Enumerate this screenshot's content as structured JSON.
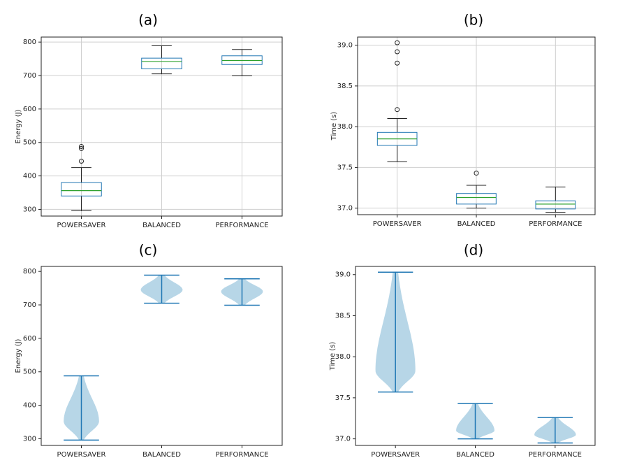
{
  "chart_data": [
    {
      "panel_label": "(a)",
      "type": "box",
      "categories": [
        "POWERSAVER",
        "BALANCED",
        "PERFORMANCE"
      ],
      "ylabel": "Energy (J)",
      "ylim": [
        280,
        815
      ],
      "yticks": [
        300,
        400,
        500,
        600,
        700,
        800
      ],
      "grid": true,
      "series": [
        {
          "name": "POWERSAVER",
          "whisker_low": 296,
          "q1": 340,
          "median": 356,
          "q3": 380,
          "whisker_high": 425,
          "outliers": [
            444,
            482,
            488
          ]
        },
        {
          "name": "BALANCED",
          "whisker_low": 705,
          "q1": 720,
          "median": 742,
          "q3": 752,
          "whisker_high": 789,
          "outliers": []
        },
        {
          "name": "PERFORMANCE",
          "whisker_low": 699,
          "q1": 733,
          "median": 745,
          "q3": 759,
          "whisker_high": 778,
          "outliers": []
        }
      ]
    },
    {
      "panel_label": "(b)",
      "type": "box",
      "categories": [
        "POWERSAVER",
        "BALANCED",
        "PERFORMANCE"
      ],
      "ylabel": "Time (s)",
      "ylim": [
        36.92,
        39.1
      ],
      "yticks": [
        37.0,
        37.5,
        38.0,
        38.5,
        39.0
      ],
      "tick_labels": [
        "37.0",
        "37.5",
        "38.0",
        "38.5",
        "39.0"
      ],
      "grid": true,
      "series": [
        {
          "name": "POWERSAVER",
          "whisker_low": 37.57,
          "q1": 37.77,
          "median": 37.85,
          "q3": 37.93,
          "whisker_high": 38.1,
          "outliers": [
            38.21,
            38.78,
            38.92,
            39.03
          ]
        },
        {
          "name": "BALANCED",
          "whisker_low": 37.0,
          "q1": 37.05,
          "median": 37.13,
          "q3": 37.18,
          "whisker_high": 37.28,
          "outliers": [
            37.43
          ]
        },
        {
          "name": "PERFORMANCE",
          "whisker_low": 36.95,
          "q1": 36.99,
          "median": 37.05,
          "q3": 37.09,
          "whisker_high": 37.26,
          "outliers": []
        }
      ]
    },
    {
      "panel_label": "(c)",
      "type": "violin",
      "categories": [
        "POWERSAVER",
        "BALANCED",
        "PERFORMANCE"
      ],
      "ylabel": "Energy (J)",
      "ylim": [
        280,
        815
      ],
      "yticks": [
        300,
        400,
        500,
        600,
        700,
        800
      ],
      "grid": false,
      "series": [
        {
          "name": "POWERSAVER",
          "min": 296,
          "max": 488,
          "peak": 352,
          "max_halfwidth_units": 0.22
        },
        {
          "name": "BALANCED",
          "min": 705,
          "max": 789,
          "peak": 745,
          "max_halfwidth_units": 0.26
        },
        {
          "name": "PERFORMANCE",
          "min": 699,
          "max": 778,
          "peak": 740,
          "max_halfwidth_units": 0.26
        }
      ]
    },
    {
      "panel_label": "(d)",
      "type": "violin",
      "categories": [
        "POWERSAVER",
        "BALANCED",
        "PERFORMANCE"
      ],
      "ylabel": "Time (s)",
      "ylim": [
        36.92,
        39.1
      ],
      "yticks": [
        37.0,
        37.5,
        38.0,
        38.5,
        39.0
      ],
      "tick_labels": [
        "37.0",
        "37.5",
        "38.0",
        "38.5",
        "39.0"
      ],
      "grid": false,
      "series": [
        {
          "name": "POWERSAVER",
          "min": 37.57,
          "max": 39.03,
          "peak": 37.83,
          "max_halfwidth_units": 0.25
        },
        {
          "name": "BALANCED",
          "min": 37.0,
          "max": 37.43,
          "peak": 37.1,
          "max_halfwidth_units": 0.24
        },
        {
          "name": "PERFORMANCE",
          "min": 36.95,
          "max": 37.26,
          "peak": 37.05,
          "max_halfwidth_units": 0.26
        }
      ]
    }
  ],
  "colors": {
    "box_edge": "#2277b4",
    "median": "#2ca02c",
    "whisker": "#222222",
    "grid": "#cfcfcf",
    "violin_fill": "#b3d4e6",
    "violin_line": "#1f77b4"
  }
}
